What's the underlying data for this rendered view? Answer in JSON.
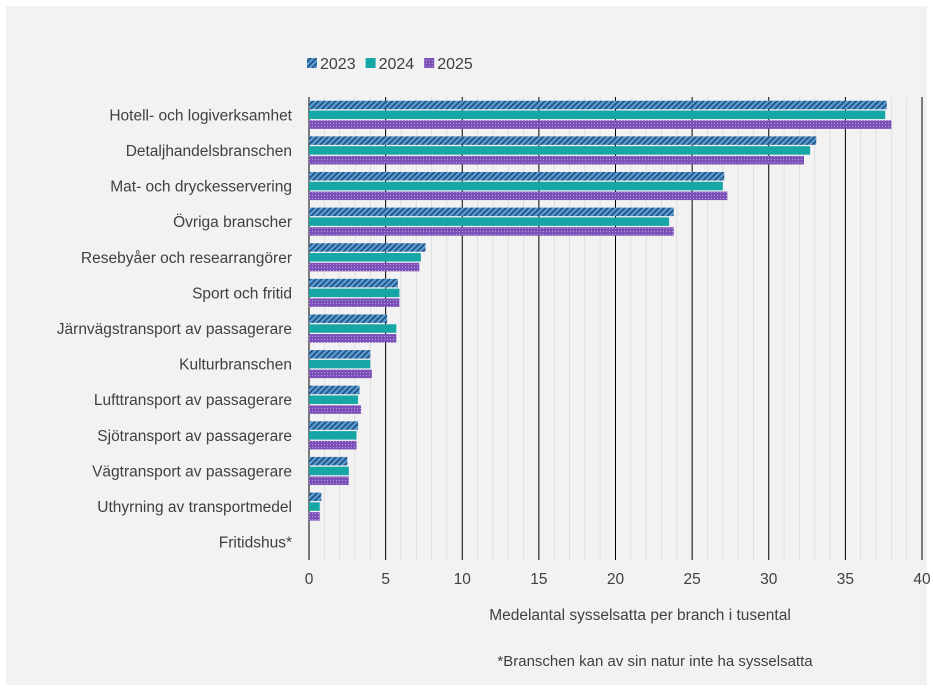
{
  "chart_data": {
    "type": "bar",
    "orientation": "horizontal",
    "categories": [
      "Hotell- och logiverksamhet",
      "Detaljhandelsbranschen",
      "Mat- och dryckesservering",
      "Övriga branscher",
      "Resebyåer och researrangörer",
      "Sport och fritid",
      "Järnvägstransport av passagerare",
      "Kulturbranschen",
      "Lufttransport av passagerare",
      "Sjötransport av passagerare",
      "Vägtransport av passagerare",
      "Uthyrning av transportmedel",
      "Fritidshus*"
    ],
    "series": [
      {
        "name": "2023",
        "color": "#2e75b6",
        "pattern": "diagonal-stripes",
        "values": [
          37.7,
          33.1,
          27.1,
          23.8,
          7.6,
          5.8,
          5.1,
          4.0,
          3.3,
          3.2,
          2.5,
          0.8,
          0
        ]
      },
      {
        "name": "2024",
        "color": "#17a6a6",
        "pattern": "solid",
        "values": [
          37.6,
          32.7,
          27.0,
          23.5,
          7.3,
          5.9,
          5.7,
          4.0,
          3.2,
          3.1,
          2.6,
          0.7,
          0
        ]
      },
      {
        "name": "2025",
        "color": "#7b50b8",
        "pattern": "dotted",
        "values": [
          38.0,
          32.3,
          27.3,
          23.8,
          7.2,
          5.9,
          5.7,
          4.1,
          3.4,
          3.1,
          2.6,
          0.7,
          0
        ]
      }
    ],
    "x_ticks": [
      "0",
      "5",
      "10",
      "15",
      "20",
      "25",
      "30",
      "35",
      "40"
    ],
    "xlim": [
      0,
      40
    ],
    "xlabel": "Medelantal sysselsatta per branch i tusental",
    "ylabel": "",
    "title": "",
    "grid": "vertical",
    "legend_position": "top-left",
    "footnote": "*Branschen kan av sin natur inte ha sysselsatta"
  }
}
